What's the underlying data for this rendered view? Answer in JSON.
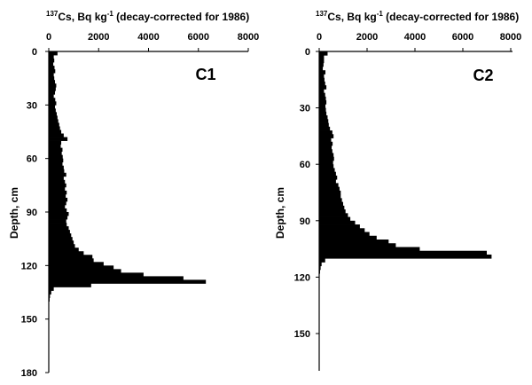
{
  "chart_data": [
    {
      "type": "bar",
      "orientation": "horizontal",
      "panel_label": "C1",
      "title_sup": "137",
      "title_a": "Cs, Bq kg",
      "title_sup2": "-1",
      "title_b": " (decay-corrected for  1986)",
      "ylabel": "Depth, cm",
      "xlim": [
        0,
        8000
      ],
      "ylim": [
        0,
        180
      ],
      "x_ticks": [
        "0",
        "2000",
        "4000",
        "6000",
        "8000"
      ],
      "y_ticks": [
        "0",
        "30",
        "60",
        "90",
        "120",
        "150",
        "180"
      ],
      "bin_cm": 2,
      "values": [
        350,
        200,
        220,
        180,
        230,
        260,
        200,
        220,
        250,
        300,
        280,
        250,
        200,
        260,
        300,
        250,
        280,
        320,
        350,
        380,
        420,
        450,
        500,
        600,
        750,
        500,
        480,
        550,
        520,
        560,
        580,
        550,
        600,
        620,
        700,
        600,
        650,
        700,
        650,
        720,
        680,
        750,
        700,
        650,
        720,
        800,
        750,
        700,
        720,
        800,
        850,
        900,
        950,
        1000,
        1050,
        1200,
        1400,
        1750,
        1800,
        2200,
        2600,
        2900,
        3800,
        5400,
        6300,
        1700,
        200,
        100,
        50,
        30
      ]
    },
    {
      "type": "bar",
      "orientation": "horizontal",
      "panel_label": "C2",
      "title_sup": "137",
      "title_a": "Cs, Bq kg",
      "title_sup2": "-1",
      "title_b": " (decay-corrected for 1986)",
      "ylabel": "Depth, cm",
      "xlim": [
        0,
        8000
      ],
      "ylim": [
        0,
        165
      ],
      "x_ticks": [
        "0",
        "2000",
        "4000",
        "6000",
        "8000"
      ],
      "y_ticks": [
        "0",
        "30",
        "60",
        "90",
        "120",
        "150"
      ],
      "bin_cm": 2,
      "values": [
        350,
        200,
        200,
        180,
        150,
        260,
        200,
        220,
        250,
        300,
        200,
        250,
        280,
        300,
        260,
        280,
        300,
        350,
        380,
        400,
        450,
        550,
        600,
        500,
        560,
        520,
        550,
        600,
        620,
        580,
        600,
        650,
        700,
        750,
        700,
        800,
        850,
        900,
        900,
        950,
        1000,
        1050,
        1100,
        1200,
        1300,
        1500,
        1700,
        1900,
        2100,
        2400,
        2900,
        3200,
        4200,
        7000,
        7200,
        250,
        100,
        60,
        30
      ]
    }
  ]
}
